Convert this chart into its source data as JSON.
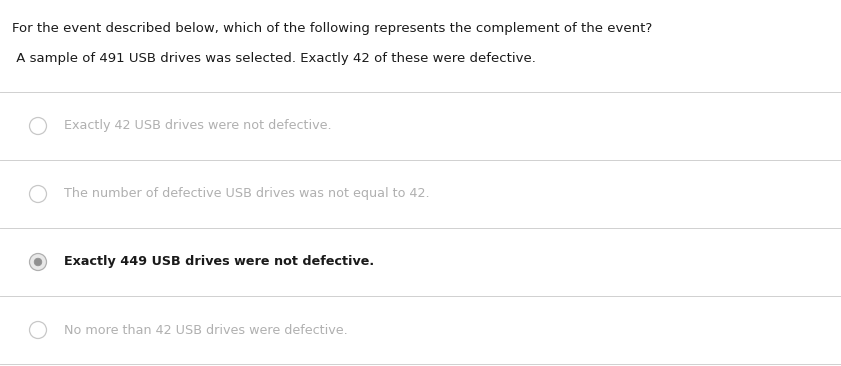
{
  "background_color": "#ffffff",
  "question_line1": "For the event described below, which of the following represents the complement of the event?",
  "question_line2": " A sample of 491 USB drives was selected. Exactly 42 of these were defective.",
  "options": [
    {
      "text": "Exactly 42 USB drives were not defective.",
      "selected": false
    },
    {
      "text": "The number of defective USB drives was not equal to 42.",
      "selected": false
    },
    {
      "text": "Exactly 449 USB drives were not defective.",
      "selected": true
    },
    {
      "text": "No more than 42 USB drives were defective.",
      "selected": false
    }
  ],
  "question_color": "#1a1a1a",
  "unselected_text_color": "#b0b0b0",
  "selected_text_color": "#1a1a1a",
  "unselected_circle_edge": "#c8c8c8",
  "divider_color": "#d0d0d0",
  "question_fontsize": 9.5,
  "option_fontsize": 9.2,
  "fig_width": 8.41,
  "fig_height": 3.66,
  "dpi": 100
}
